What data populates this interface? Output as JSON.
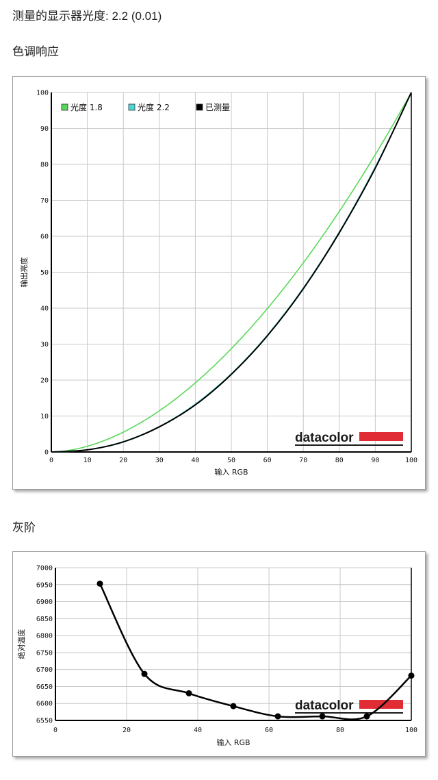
{
  "header": {
    "measured_label": "测量的显示器光度:",
    "measured_value": "2.2 (0.01)"
  },
  "sections": {
    "tone_title": "色调响应",
    "gray_title": "灰阶"
  },
  "brand": {
    "logo_text": "datacolor",
    "accent_color": "#e02d35"
  },
  "chart_data": [
    {
      "type": "line",
      "xlabel": "输入 RGB",
      "ylabel": "输出亮度",
      "xlim": [
        0,
        100
      ],
      "ylim": [
        0,
        100
      ],
      "xticks": [
        0,
        10,
        20,
        30,
        40,
        50,
        60,
        70,
        80,
        90,
        100
      ],
      "yticks": [
        0,
        10,
        20,
        30,
        40,
        50,
        60,
        70,
        80,
        90,
        100
      ],
      "grid": true,
      "legend_position": "top-left",
      "series": [
        {
          "name": "光度 1.8",
          "color": "#58d858",
          "gamma": 1.8,
          "x": [
            0,
            10,
            20,
            30,
            40,
            50,
            60,
            70,
            80,
            90,
            100
          ],
          "y": [
            0,
            1.6,
            5.5,
            11.5,
            19.2,
            28.7,
            39.9,
            52.6,
            66.9,
            82.7,
            100
          ]
        },
        {
          "name": "光度 2.2",
          "color": "#48d8d8",
          "gamma": 2.2,
          "x": [
            0,
            10,
            20,
            30,
            40,
            50,
            60,
            70,
            80,
            90,
            100
          ],
          "y": [
            0,
            0.6,
            2.9,
            7.1,
            13.3,
            21.8,
            32.5,
            45.6,
            61.2,
            79.3,
            100
          ]
        },
        {
          "name": "已测量",
          "color": "#000000",
          "x": [
            0,
            10,
            20,
            30,
            40,
            50,
            60,
            70,
            80,
            90,
            100
          ],
          "y": [
            0,
            0.6,
            2.8,
            7.0,
            13.1,
            21.6,
            32.3,
            45.4,
            61.0,
            79.0,
            100
          ]
        }
      ]
    },
    {
      "type": "line",
      "xlabel": "输入 RGB",
      "ylabel": "绝对温度",
      "xlim": [
        0,
        100
      ],
      "ylim": [
        6550,
        7000
      ],
      "xticks": [
        0,
        20,
        40,
        60,
        80,
        100
      ],
      "yticks": [
        6550,
        6600,
        6650,
        6700,
        6750,
        6800,
        6850,
        6900,
        6950,
        7000
      ],
      "grid": true,
      "series": [
        {
          "color": "#000000",
          "x": [
            12.5,
            25,
            37.5,
            50,
            62.5,
            75,
            87.5,
            100
          ],
          "y": [
            6953,
            6687,
            6630,
            6592,
            6562,
            6562,
            6562,
            6682
          ]
        }
      ]
    }
  ]
}
